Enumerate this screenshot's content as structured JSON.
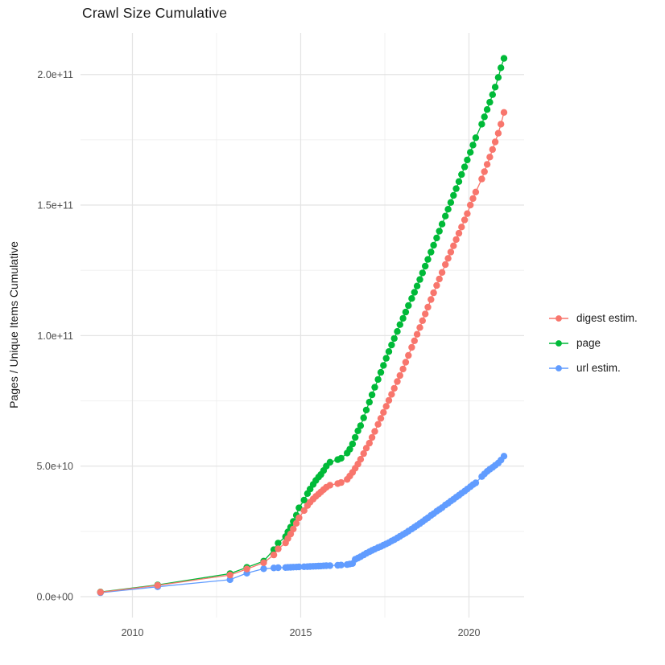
{
  "chart": {
    "title": "Crawl Size Cumulative",
    "y_axis_label": "Pages / Unique Items Cumulative",
    "legend": {
      "items": [
        {
          "label": "digest estim.",
          "color": "#F8766D"
        },
        {
          "label": "page",
          "color": "#00BA38"
        },
        {
          "label": "url estim.",
          "color": "#619CFF"
        }
      ]
    }
  },
  "chart_data": {
    "type": "scatter",
    "title": "Crawl Size Cumulative",
    "xlabel": "",
    "ylabel": "Pages / Unique Items Cumulative",
    "x_unit": "decimal_year",
    "y_unit": "items_cumulative_billions_1e9",
    "x_range": [
      2008.4,
      2021.75
    ],
    "y_range_e9": [
      -11,
      216
    ],
    "grid": true,
    "legend_position": "right",
    "x_ticks": [
      {
        "label": "2010",
        "year": 2010
      },
      {
        "label": "2015",
        "year": 2015
      },
      {
        "label": "2020",
        "year": 2020
      }
    ],
    "x_minor_years": [
      2012.5,
      2017.5
    ],
    "y_ticks": [
      {
        "label": "0.0e+00",
        "value_e9": 0
      },
      {
        "label": "5.0e+10",
        "value_e9": 50
      },
      {
        "label": "1.0e+11",
        "value_e9": 100
      },
      {
        "label": "1.5e+11",
        "value_e9": 150
      },
      {
        "label": "2.0e+11",
        "value_e9": 200
      }
    ],
    "y_minor_e9": [
      25,
      75,
      125,
      175
    ],
    "x": [
      2009.05,
      2010.75,
      2012.9,
      2013.4,
      2013.9,
      2014.2,
      2014.33,
      2014.55,
      2014.62,
      2014.7,
      2014.78,
      2014.87,
      2014.95,
      2015.1,
      2015.2,
      2015.28,
      2015.37,
      2015.45,
      2015.53,
      2015.6,
      2015.68,
      2015.76,
      2015.87,
      2016.1,
      2016.2,
      2016.38,
      2016.46,
      2016.54,
      2016.62,
      2016.7,
      2016.78,
      2016.87,
      2016.95,
      2017.04,
      2017.12,
      2017.2,
      2017.3,
      2017.38,
      2017.46,
      2017.54,
      2017.62,
      2017.7,
      2017.78,
      2017.87,
      2017.95,
      2018.04,
      2018.12,
      2018.2,
      2018.3,
      2018.38,
      2018.46,
      2018.54,
      2018.62,
      2018.7,
      2018.78,
      2018.87,
      2018.95,
      2019.04,
      2019.12,
      2019.2,
      2019.3,
      2019.38,
      2019.46,
      2019.54,
      2019.62,
      2019.7,
      2019.78,
      2019.87,
      2019.95,
      2020.04,
      2020.12,
      2020.2,
      2020.38,
      2020.46,
      2020.54,
      2020.62,
      2020.7,
      2020.78,
      2020.87,
      2020.95,
      2021.04
    ],
    "series": [
      {
        "name": "digest estim.",
        "color": "#F8766D",
        "values_e9": [
          1.7,
          4.3,
          8.3,
          10.6,
          13.0,
          16.0,
          18.3,
          20.6,
          22.3,
          24.0,
          25.9,
          28.1,
          30.2,
          33.0,
          34.9,
          36.2,
          37.4,
          38.4,
          39.3,
          40.1,
          41.0,
          41.9,
          42.7,
          43.3,
          43.7,
          44.9,
          46.2,
          47.6,
          49.2,
          50.8,
          52.6,
          54.8,
          56.9,
          58.8,
          61.0,
          63.3,
          66.0,
          68.3,
          70.6,
          72.9,
          75.2,
          77.5,
          79.8,
          82.4,
          84.7,
          87.2,
          89.8,
          92.4,
          95.5,
          98.0,
          100.5,
          103.1,
          105.7,
          108.3,
          110.9,
          113.8,
          116.4,
          119.2,
          121.7,
          124.2,
          127.2,
          129.6,
          132.0,
          134.4,
          136.8,
          139.2,
          141.6,
          144.3,
          146.7,
          150.0,
          152.5,
          155.0,
          160.0,
          162.8,
          165.6,
          168.4,
          171.3,
          174.2,
          177.5,
          181.0,
          185.5
        ]
      },
      {
        "name": "page",
        "color": "#00BA38",
        "values_e9": [
          1.8,
          4.5,
          8.8,
          11.2,
          13.6,
          18.0,
          20.5,
          23.0,
          24.8,
          26.6,
          28.8,
          31.2,
          34.0,
          37.0,
          39.5,
          41.2,
          43.0,
          44.5,
          45.8,
          46.8,
          48.3,
          50.0,
          51.5,
          52.5,
          53.0,
          55.0,
          56.5,
          58.5,
          61.0,
          63.5,
          65.5,
          68.5,
          71.5,
          74.5,
          77.3,
          80.2,
          83.2,
          85.9,
          88.6,
          91.3,
          93.9,
          96.4,
          98.9,
          101.6,
          104.2,
          106.6,
          109.0,
          111.5,
          114.2,
          116.6,
          119.0,
          121.5,
          124.0,
          126.6,
          129.2,
          132.0,
          134.6,
          137.4,
          140.0,
          142.7,
          145.8,
          148.4,
          151.0,
          153.7,
          156.3,
          159.0,
          161.7,
          164.6,
          167.3,
          170.2,
          173.0,
          175.8,
          181.0,
          183.8,
          186.6,
          189.4,
          192.3,
          195.2,
          198.9,
          202.6,
          206.2
        ]
      },
      {
        "name": "url estim.",
        "color": "#619CFF",
        "values_e9": [
          1.5,
          3.8,
          6.5,
          9.0,
          10.7,
          11.0,
          11.1,
          11.15,
          11.2,
          11.25,
          11.3,
          11.35,
          11.4,
          11.45,
          11.5,
          11.55,
          11.6,
          11.65,
          11.7,
          11.75,
          11.8,
          11.85,
          11.9,
          12.0,
          12.1,
          12.3,
          12.5,
          12.7,
          14.3,
          14.8,
          15.3,
          16.0,
          16.6,
          17.2,
          17.7,
          18.2,
          18.8,
          19.2,
          19.7,
          20.2,
          20.7,
          21.3,
          21.8,
          22.5,
          23.1,
          23.8,
          24.4,
          25.1,
          25.9,
          26.6,
          27.3,
          28.0,
          28.7,
          29.5,
          30.2,
          31.1,
          31.8,
          32.7,
          33.4,
          34.1,
          35.1,
          35.8,
          36.6,
          37.3,
          38.1,
          38.8,
          39.6,
          40.4,
          41.2,
          42.1,
          42.9,
          43.6,
          46.0,
          47.0,
          48.0,
          48.8,
          49.5,
          50.3,
          51.2,
          52.3,
          53.8
        ]
      }
    ],
    "draw_order": [
      2,
      1,
      0
    ],
    "colors": {
      "grid_major": "#e4e4e4",
      "grid_minor": "#ededed",
      "tick_text": "#4d4d4d",
      "title_text": "#1a1a1a"
    }
  }
}
